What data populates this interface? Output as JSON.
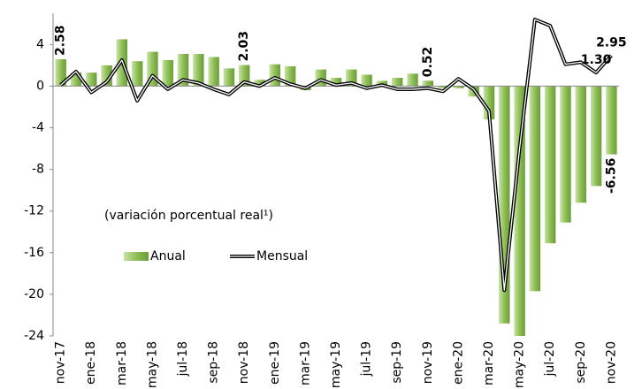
{
  "chart_data": {
    "type": "bar-line",
    "annotation": "(variación porcentual real¹)",
    "categories": [
      "nov-17",
      null,
      "ene-18",
      null,
      "mar-18",
      null,
      "may-18",
      null,
      "jul-18",
      null,
      "sep-18",
      null,
      "nov-18",
      null,
      "ene-19",
      null,
      "mar-19",
      null,
      "may-19",
      null,
      "jul-19",
      null,
      "sep-19",
      null,
      "nov-19",
      null,
      "ene-20",
      null,
      "mar-20",
      null,
      "may-20",
      null,
      "jul-20",
      null,
      "sep-20",
      null,
      "nov-20"
    ],
    "series": [
      {
        "name": "Anual",
        "kind": "bar",
        "color": "#8fbf55",
        "label_color": "#5a8a2a",
        "values": [
          2.58,
          1.3,
          1.3,
          2.0,
          4.5,
          2.4,
          3.3,
          2.5,
          3.1,
          3.1,
          2.8,
          1.7,
          2.03,
          0.6,
          2.1,
          1.9,
          -0.4,
          1.6,
          0.8,
          1.6,
          1.1,
          0.5,
          0.8,
          1.2,
          0.52,
          -0.2,
          -0.2,
          -1.0,
          -3.2,
          -22.8,
          -24.0,
          -19.7,
          -15.1,
          -13.1,
          -11.2,
          -9.6,
          -6.56
        ],
        "value_labels": [
          "2.58",
          null,
          null,
          null,
          null,
          null,
          null,
          null,
          null,
          null,
          null,
          null,
          "2.03",
          null,
          null,
          null,
          null,
          null,
          null,
          null,
          null,
          null,
          null,
          null,
          "0.52",
          null,
          null,
          null,
          null,
          null,
          null,
          null,
          null,
          null,
          null,
          null,
          "-6.56"
        ]
      },
      {
        "name": "Mensual",
        "kind": "line",
        "color": "#000000",
        "label_color": "#000000",
        "values": [
          0.1,
          1.4,
          -0.6,
          0.4,
          2.5,
          -1.4,
          1.0,
          -0.3,
          0.6,
          0.3,
          -0.3,
          -0.8,
          0.4,
          0.0,
          0.8,
          0.2,
          -0.2,
          0.6,
          0.1,
          0.3,
          -0.2,
          0.1,
          -0.3,
          -0.3,
          -0.2,
          -0.5,
          0.7,
          -0.3,
          -2.4,
          -19.6,
          -6.0,
          6.4,
          5.8,
          2.1,
          2.3,
          1.3,
          2.95
        ],
        "value_labels": [
          null,
          null,
          null,
          null,
          null,
          null,
          null,
          null,
          null,
          null,
          null,
          null,
          null,
          null,
          null,
          null,
          null,
          null,
          null,
          null,
          null,
          null,
          null,
          null,
          null,
          null,
          null,
          null,
          null,
          null,
          null,
          null,
          null,
          null,
          null,
          "1.30",
          "2.95"
        ]
      }
    ],
    "ylim": [
      -24,
      7
    ],
    "yticks": [
      4,
      0,
      -4,
      -8,
      -12,
      -16,
      -20,
      -24
    ],
    "grid": false,
    "legend": "center-left"
  }
}
